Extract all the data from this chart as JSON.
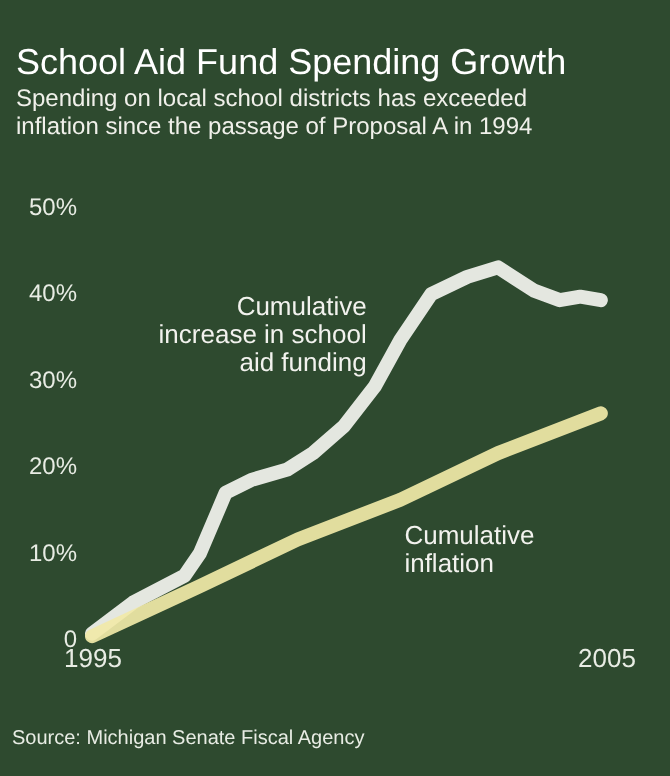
{
  "chart_data": {
    "type": "line",
    "title": "School Aid Fund Spending Growth",
    "subtitle": "Spending on local school districts has exceeded inflation since the passage of Proposal A in 1994",
    "series": [
      {
        "name": "Cumulative increase in school aid funding",
        "color": "#f4f4f0",
        "x": [
          1995.0,
          1995.8,
          1996.8,
          1997.1,
          1997.6,
          1998.1,
          1998.8,
          1999.3,
          1999.9,
          2000.5,
          2001.0,
          2001.6,
          2002.3,
          2002.9,
          2003.6,
          2004.1,
          2004.5,
          2004.9
        ],
        "values": [
          0.5,
          4.1,
          7.2,
          9.8,
          16.8,
          18.3,
          19.5,
          21.4,
          24.5,
          29.1,
          34.5,
          39.8,
          41.8,
          42.9,
          40.2,
          39.1,
          39.5,
          39.1
        ]
      },
      {
        "name": "Cumulative inflation",
        "color": "#f1e9a8",
        "x": [
          1995.0,
          1997.1,
          1999.0,
          2001.0,
          2002.9,
          2004.9
        ],
        "values": [
          0.2,
          6.0,
          11.4,
          16.0,
          21.4,
          26.0
        ]
      }
    ],
    "xlim": [
      1995,
      2005
    ],
    "xticks": [
      1995,
      2005
    ],
    "ylim": [
      0,
      50
    ],
    "yticks": [
      {
        "value": 0,
        "label": "0"
      },
      {
        "value": 10,
        "label": "10%"
      },
      {
        "value": 20,
        "label": "20%"
      },
      {
        "value": 30,
        "label": "30%"
      },
      {
        "value": 40,
        "label": "40%"
      },
      {
        "value": 50,
        "label": "50%"
      }
    ],
    "grid": false,
    "line_style": "solid",
    "marker": "none",
    "annotations": [
      "Source: Michigan Senate Fiscal Agency"
    ]
  }
}
